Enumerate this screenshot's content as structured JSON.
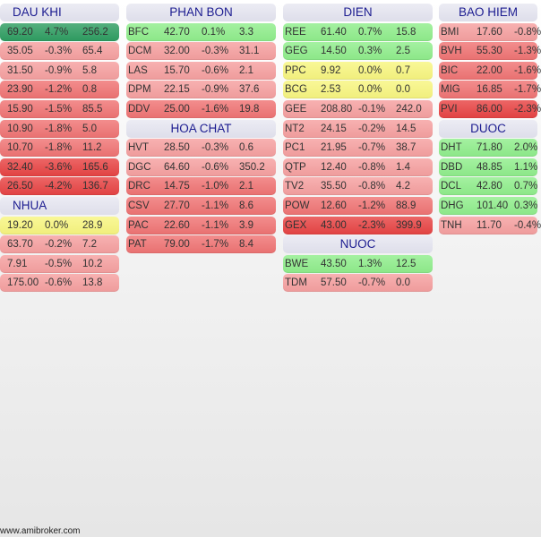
{
  "colors": {
    "strong_up": "#2f9e62",
    "up": "#90ee8c",
    "flat": "#f8f680",
    "down_light": "#f6a0a0",
    "down": "#f07474",
    "down_strong": "#e84444",
    "header_text": "#1c1c90"
  },
  "columns": [
    {
      "groups": [
        {
          "title": "DAU KHI",
          "rows": [
            [
              "",
              "69.20",
              "4.7%",
              "256.2"
            ],
            [
              "",
              "35.05",
              "-0.3%",
              "65.4"
            ],
            [
              "",
              "31.50",
              "-0.9%",
              "5.8"
            ],
            [
              "",
              "23.90",
              "-1.2%",
              "0.8"
            ],
            [
              "",
              "15.90",
              "-1.5%",
              "85.5"
            ],
            [
              "",
              "10.90",
              "-1.8%",
              "5.0"
            ],
            [
              "",
              "10.70",
              "-1.8%",
              "11.2"
            ],
            [
              "",
              "32.40",
              "-3.6%",
              "165.6"
            ],
            [
              "",
              "26.50",
              "-4.2%",
              "136.7"
            ]
          ]
        },
        {
          "title": "NHUA",
          "rows": [
            [
              "",
              "19.20",
              "0.0%",
              "28.9"
            ],
            [
              "",
              "63.70",
              "-0.2%",
              "7.2"
            ],
            [
              "",
              "7.91",
              "-0.5%",
              "10.2"
            ],
            [
              "",
              "175.00",
              "-0.6%",
              "13.8"
            ]
          ]
        }
      ]
    },
    {
      "groups": [
        {
          "title": "PHAN BON",
          "rows": [
            [
              "BFC",
              "42.70",
              "0.1%",
              "3.3"
            ],
            [
              "DCM",
              "32.00",
              "-0.3%",
              "31.1"
            ],
            [
              "LAS",
              "15.70",
              "-0.6%",
              "2.1"
            ],
            [
              "DPM",
              "22.15",
              "-0.9%",
              "37.6"
            ],
            [
              "DDV",
              "25.00",
              "-1.6%",
              "19.8"
            ]
          ]
        },
        {
          "title": "HOA CHAT",
          "rows": [
            [
              "HVT",
              "28.50",
              "-0.3%",
              "0.6"
            ],
            [
              "DGC",
              "64.60",
              "-0.6%",
              "350.2"
            ],
            [
              "DRC",
              "14.75",
              "-1.0%",
              "2.1"
            ],
            [
              "CSV",
              "27.70",
              "-1.1%",
              "8.6"
            ],
            [
              "PAC",
              "22.60",
              "-1.1%",
              "3.9"
            ],
            [
              "PAT",
              "79.00",
              "-1.7%",
              "8.4"
            ]
          ]
        }
      ]
    },
    {
      "groups": [
        {
          "title": "DIEN",
          "rows": [
            [
              "REE",
              "61.40",
              "0.7%",
              "15.8"
            ],
            [
              "GEG",
              "14.50",
              "0.3%",
              "2.5"
            ],
            [
              "PPC",
              "9.92",
              "0.0%",
              "0.7"
            ],
            [
              "BCG",
              "2.53",
              "0.0%",
              "0.0"
            ],
            [
              "GEE",
              "208.80",
              "-0.1%",
              "242.0"
            ],
            [
              "NT2",
              "24.15",
              "-0.2%",
              "14.5"
            ],
            [
              "PC1",
              "21.95",
              "-0.7%",
              "38.7"
            ],
            [
              "QTP",
              "12.40",
              "-0.8%",
              "1.4"
            ],
            [
              "TV2",
              "35.50",
              "-0.8%",
              "4.2"
            ],
            [
              "POW",
              "12.60",
              "-1.2%",
              "88.9"
            ],
            [
              "GEX",
              "43.00",
              "-2.3%",
              "399.9"
            ]
          ]
        },
        {
          "title": "NUOC",
          "rows": [
            [
              "BWE",
              "43.50",
              "1.3%",
              "12.5"
            ],
            [
              "TDM",
              "57.50",
              "-0.7%",
              "0.0"
            ]
          ]
        }
      ]
    },
    {
      "groups": [
        {
          "title": "BAO HIEM",
          "rows": [
            [
              "BMI",
              "17.60",
              "-0.8%",
              ""
            ],
            [
              "BVH",
              "55.30",
              "-1.3%",
              ""
            ],
            [
              "BIC",
              "22.00",
              "-1.6%",
              ""
            ],
            [
              "MIG",
              "16.85",
              "-1.7%",
              ""
            ],
            [
              "PVI",
              "86.00",
              "-2.3%",
              ""
            ]
          ]
        },
        {
          "title": "DUOC",
          "rows": [
            [
              "DHT",
              "71.80",
              "2.0%",
              ""
            ],
            [
              "DBD",
              "48.85",
              "1.1%",
              ""
            ],
            [
              "DCL",
              "42.80",
              "0.7%",
              ""
            ],
            [
              "DHG",
              "101.40",
              "0.3%",
              ""
            ],
            [
              "TNH",
              "11.70",
              "-0.4%",
              ""
            ]
          ]
        }
      ]
    }
  ],
  "footer": "www.amibroker.com"
}
